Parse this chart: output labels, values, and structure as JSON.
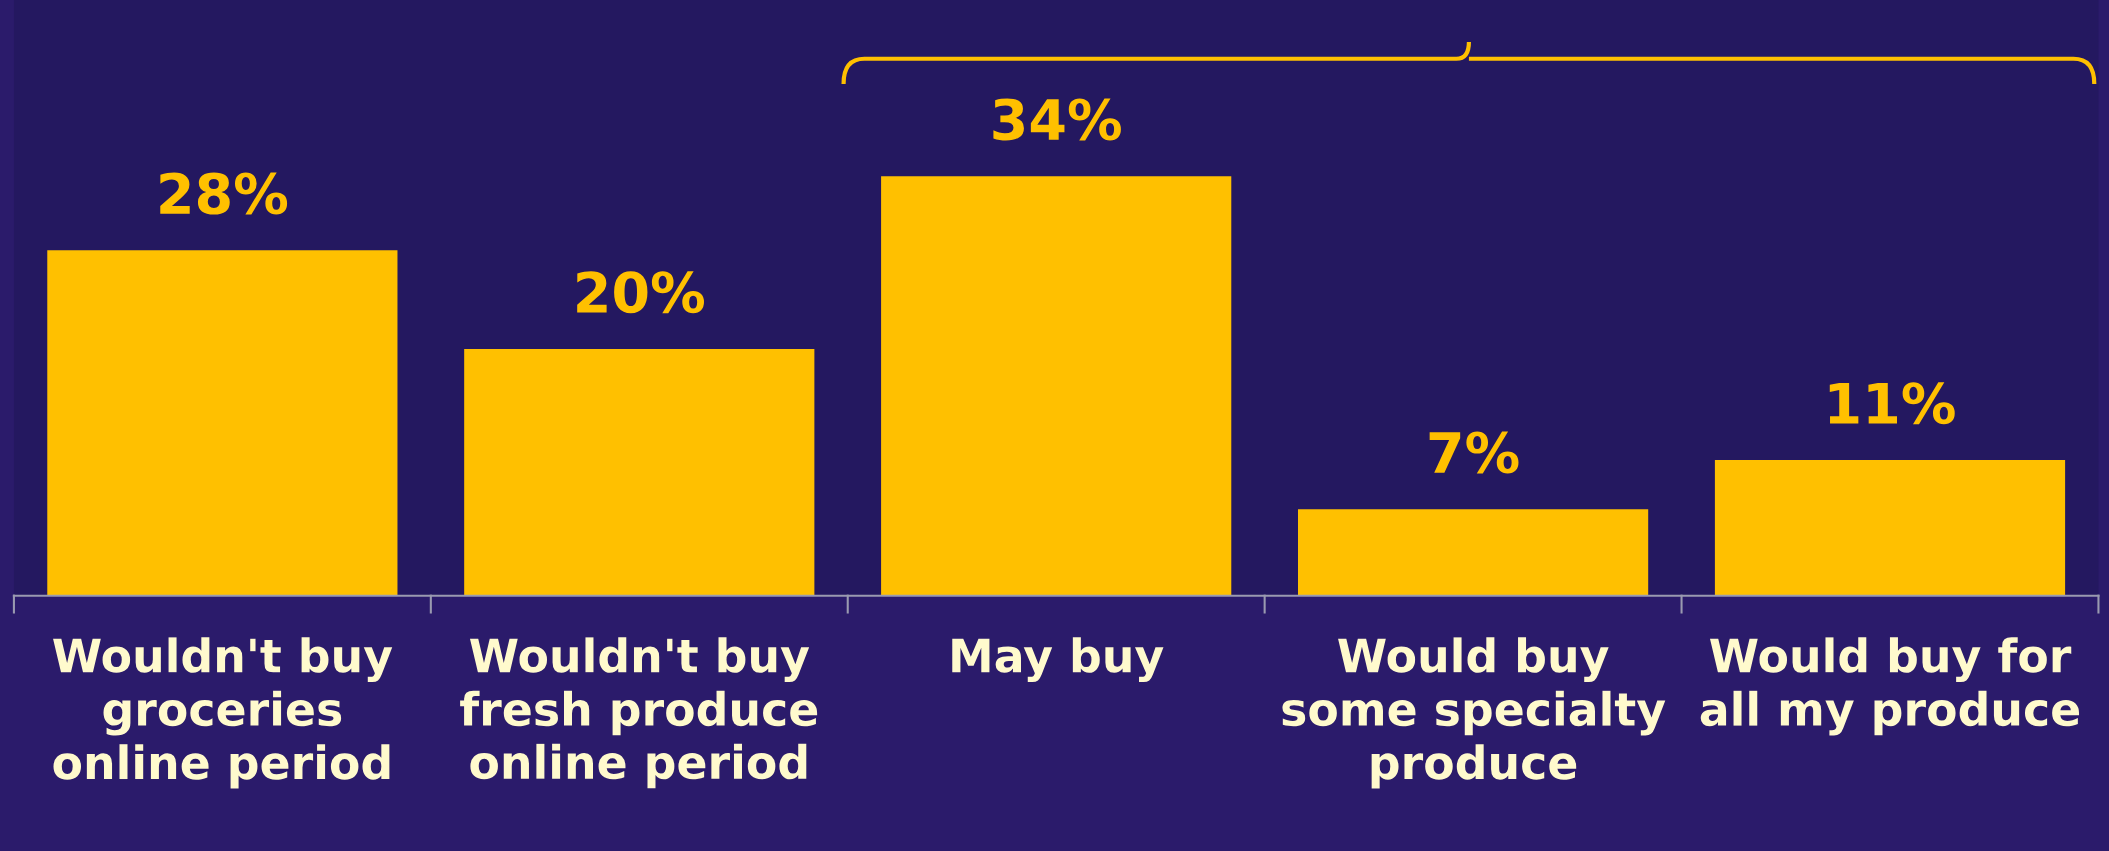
{
  "chart_data": {
    "type": "bar",
    "categories": [
      "Wouldn't buy\ngroceries\nonline period",
      "Wouldn't buy\nfresh produce\nonline period",
      "May buy",
      "Would buy\nsome specialty\nproduce",
      "Would buy for\nall my produce"
    ],
    "values": [
      28,
      20,
      34,
      7,
      11
    ],
    "color": "#ffc000",
    "value_labels": [
      "28%",
      "20%",
      "34%",
      "7%",
      "11%"
    ],
    "grid": false,
    "legend": false
  }
}
